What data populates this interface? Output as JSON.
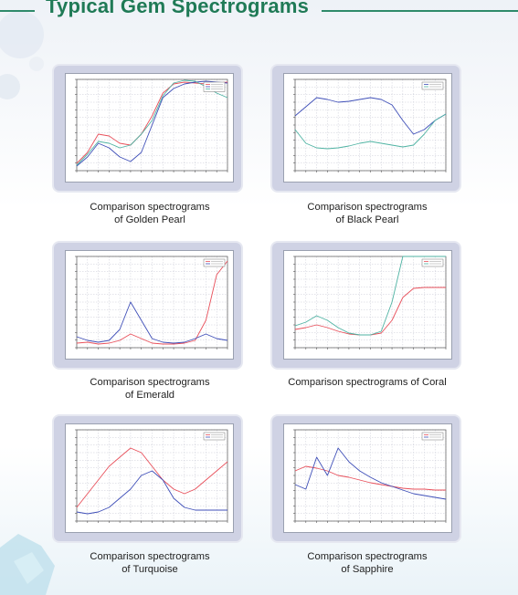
{
  "header": {
    "title": "Typical Gem Spectrograms"
  },
  "colors": {
    "accent": "#1f7a56",
    "card": "#cfd2e4",
    "series_a": "#e8505b",
    "series_b": "#3f4fb8",
    "series_c": "#4fb3a3"
  },
  "cards": [
    {
      "caption_line1": "Comparison spectrograms",
      "caption_line2": "of Golden Pearl"
    },
    {
      "caption_line1": "Comparison spectrograms",
      "caption_line2": "of Black Pearl"
    },
    {
      "caption_line1": "Comparison spectrograms",
      "caption_line2": "of Emerald"
    },
    {
      "caption_line1": "Comparison spectrograms of Coral",
      "caption_line2": ""
    },
    {
      "caption_line1": "Comparison spectrograms",
      "caption_line2": "of Turquoise"
    },
    {
      "caption_line1": "Comparison spectrograms",
      "caption_line2": "of Sapphire"
    }
  ],
  "chart_data": [
    {
      "type": "line",
      "series": [
        {
          "color": "red",
          "values": [
            8,
            20,
            40,
            38,
            30,
            28,
            40,
            60,
            85,
            95,
            97,
            96,
            95,
            96,
            97
          ]
        },
        {
          "color": "blue",
          "values": [
            5,
            15,
            30,
            25,
            15,
            10,
            20,
            50,
            80,
            90,
            95,
            97,
            98,
            97,
            96
          ]
        },
        {
          "color": "teal",
          "values": [
            6,
            18,
            32,
            30,
            25,
            28,
            40,
            55,
            82,
            96,
            99,
            98,
            92,
            85,
            80
          ]
        }
      ]
    },
    {
      "type": "line",
      "series": [
        {
          "color": "blue",
          "values": [
            60,
            70,
            80,
            78,
            75,
            76,
            78,
            80,
            78,
            72,
            55,
            40,
            45,
            55,
            62
          ]
        },
        {
          "color": "teal",
          "values": [
            45,
            30,
            25,
            24,
            25,
            27,
            30,
            32,
            30,
            28,
            26,
            28,
            40,
            55,
            62
          ]
        }
      ]
    },
    {
      "type": "line",
      "series": [
        {
          "color": "red",
          "values": [
            5,
            6,
            4,
            5,
            8,
            15,
            10,
            5,
            4,
            4,
            5,
            8,
            30,
            80,
            95
          ]
        },
        {
          "color": "blue",
          "values": [
            12,
            8,
            6,
            8,
            20,
            50,
            30,
            10,
            6,
            5,
            6,
            10,
            15,
            10,
            8
          ]
        }
      ]
    },
    {
      "type": "line",
      "series": [
        {
          "color": "red",
          "values": [
            20,
            22,
            25,
            22,
            18,
            15,
            14,
            14,
            16,
            30,
            55,
            65,
            66,
            66,
            66
          ]
        },
        {
          "color": "teal",
          "values": [
            24,
            28,
            35,
            30,
            22,
            16,
            14,
            14,
            18,
            50,
            100,
            100,
            100,
            100,
            100
          ]
        }
      ]
    },
    {
      "type": "line",
      "series": [
        {
          "color": "red",
          "values": [
            15,
            30,
            45,
            60,
            70,
            80,
            75,
            60,
            45,
            35,
            30,
            35,
            45,
            55,
            65
          ]
        },
        {
          "color": "blue",
          "values": [
            10,
            8,
            10,
            15,
            25,
            35,
            50,
            55,
            45,
            25,
            15,
            12,
            12,
            12,
            12
          ]
        }
      ]
    },
    {
      "type": "line",
      "series": [
        {
          "color": "red",
          "values": [
            55,
            60,
            58,
            55,
            50,
            48,
            45,
            42,
            40,
            38,
            36,
            35,
            35,
            34,
            34
          ]
        },
        {
          "color": "blue",
          "values": [
            40,
            35,
            70,
            50,
            80,
            65,
            55,
            48,
            42,
            38,
            34,
            30,
            28,
            26,
            24
          ]
        }
      ]
    }
  ]
}
